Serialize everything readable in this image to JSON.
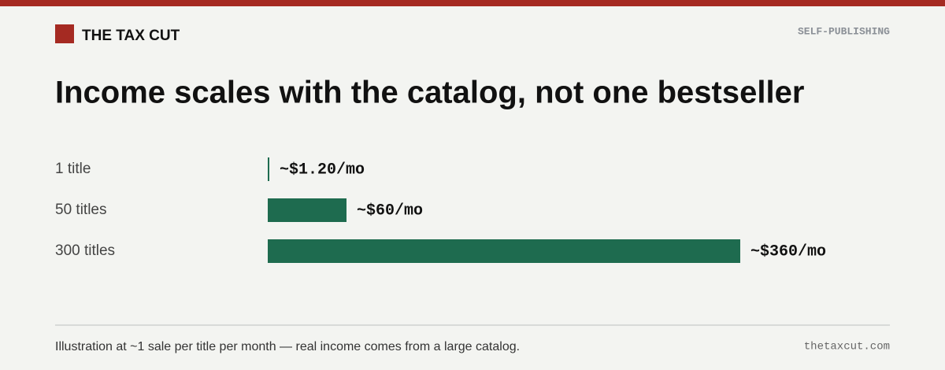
{
  "header": {
    "brand": "THE TAX CUT",
    "section": "SELF-PUBLISHING"
  },
  "chart_data": {
    "type": "bar",
    "orientation": "horizontal",
    "title": "Income scales with the catalog, not one bestseller",
    "categories": [
      "1 title",
      "50 titles",
      "300 titles"
    ],
    "values": [
      1.2,
      60,
      360
    ],
    "value_labels": [
      "~$1.20/mo",
      "~$60/mo",
      "~$360/mo"
    ],
    "color": "#1e6b4f"
  },
  "footer": {
    "note": "Illustration at ~1 sale per title per month — real income comes from a large catalog.",
    "site": "thetaxcut.com"
  }
}
